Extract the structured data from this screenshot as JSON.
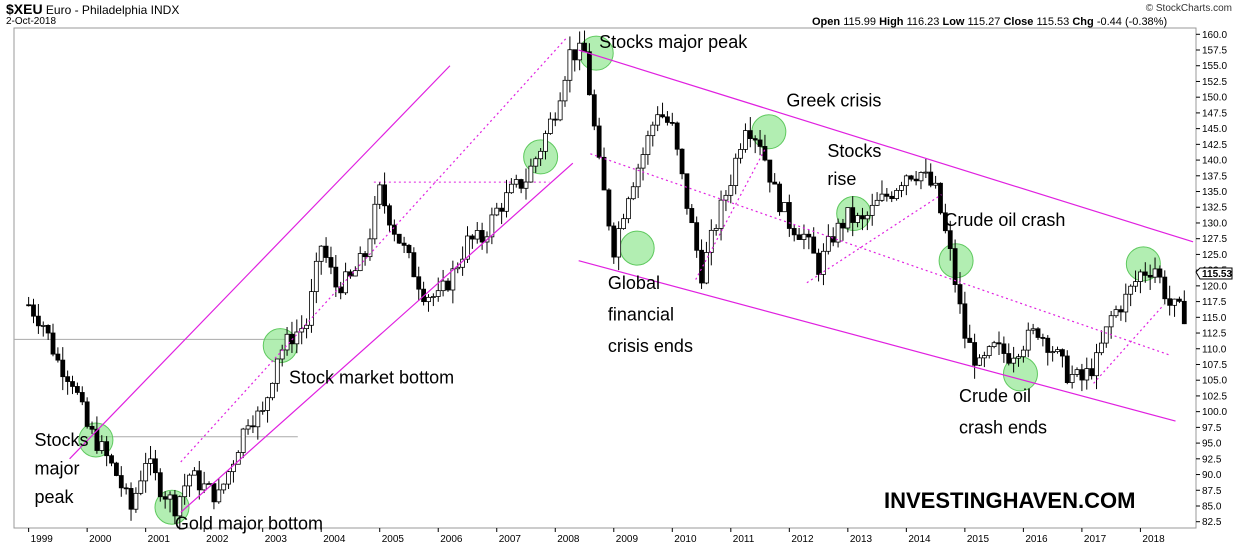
{
  "header": {
    "symbol": "$XEU",
    "name": "Euro - Philadelphia INDX",
    "date": "2-Oct-2018",
    "copyright": "© StockCharts.com",
    "open_label": "Open",
    "open": "115.99",
    "high_label": "High",
    "high": "116.23",
    "low_label": "Low",
    "low": "115.27",
    "close_label": "Close",
    "close": "115.53",
    "chg_label": "Chg",
    "chg": "-0.44 (-0.38%)"
  },
  "watermark": "INVESTINGHAVEN.COM",
  "colors": {
    "up": "#ffffff",
    "down": "#000000",
    "channel": "#e020e0",
    "highlight": "#7ee37e",
    "grid": "#cccccc"
  },
  "chart_data": {
    "type": "candlestick",
    "title": "$XEU Euro - Philadelphia INDX",
    "xlabel": "",
    "ylabel": "",
    "xlim": [
      1998.75,
      2018.95
    ],
    "ylim": [
      81.5,
      161
    ],
    "y_ticks": [
      82.5,
      85.0,
      87.5,
      90.0,
      92.5,
      95.0,
      97.5,
      100.0,
      102.5,
      105.0,
      107.5,
      110.0,
      112.5,
      115.0,
      117.5,
      120.0,
      122.5,
      125.0,
      127.5,
      130.0,
      132.5,
      135.0,
      137.5,
      140.0,
      142.5,
      145.0,
      147.5,
      150.0,
      152.5,
      155.0,
      157.5,
      160.0
    ],
    "x_ticks": [
      "1999",
      "2000",
      "2001",
      "2002",
      "2003",
      "2004",
      "2005",
      "2006",
      "2007",
      "2008",
      "2009",
      "2010",
      "2011",
      "2012",
      "2013",
      "2014",
      "2015",
      "2016",
      "2017",
      "2018"
    ],
    "last_value": "115.53",
    "path_points": [
      [
        1999.0,
        117.0
      ],
      [
        1999.25,
        114.0
      ],
      [
        1999.5,
        108.0
      ],
      [
        1999.75,
        105.0
      ],
      [
        2000.0,
        97.5
      ],
      [
        2000.25,
        94.0
      ],
      [
        2000.5,
        90.0
      ],
      [
        2000.75,
        84.5
      ],
      [
        2001.0,
        92.5
      ],
      [
        2001.25,
        88.0
      ],
      [
        2001.5,
        85.0
      ],
      [
        2001.75,
        90.0
      ],
      [
        2002.0,
        88.0
      ],
      [
        2002.25,
        86.5
      ],
      [
        2002.5,
        92.5
      ],
      [
        2002.75,
        99.0
      ],
      [
        2003.0,
        99.5
      ],
      [
        2003.25,
        109.0
      ],
      [
        2003.5,
        112.0
      ],
      [
        2003.75,
        114.0
      ],
      [
        2004.0,
        126.5
      ],
      [
        2004.25,
        120.0
      ],
      [
        2004.5,
        121.0
      ],
      [
        2004.75,
        125.0
      ],
      [
        2005.0,
        135.0
      ],
      [
        2005.25,
        129.0
      ],
      [
        2005.5,
        124.0
      ],
      [
        2005.75,
        119.0
      ],
      [
        2006.0,
        118.0
      ],
      [
        2006.25,
        122.0
      ],
      [
        2006.5,
        127.0
      ],
      [
        2006.75,
        127.5
      ],
      [
        2007.0,
        132.0
      ],
      [
        2007.25,
        135.0
      ],
      [
        2007.5,
        137.0
      ],
      [
        2007.75,
        142.0
      ],
      [
        2008.0,
        148.0
      ],
      [
        2008.25,
        157.0
      ],
      [
        2008.5,
        157.0
      ],
      [
        2008.75,
        139.0
      ],
      [
        2009.0,
        126.0
      ],
      [
        2009.25,
        135.0
      ],
      [
        2009.5,
        141.0
      ],
      [
        2009.75,
        148.0
      ],
      [
        2010.0,
        145.0
      ],
      [
        2010.25,
        133.0
      ],
      [
        2010.5,
        122.0
      ],
      [
        2010.75,
        130.0
      ],
      [
        2011.0,
        137.0
      ],
      [
        2011.25,
        146.0
      ],
      [
        2011.5,
        143.0
      ],
      [
        2011.75,
        135.0
      ],
      [
        2012.0,
        130.0
      ],
      [
        2012.25,
        128.0
      ],
      [
        2012.5,
        123.0
      ],
      [
        2012.75,
        128.0
      ],
      [
        2013.0,
        131.0
      ],
      [
        2013.25,
        130.0
      ],
      [
        2013.5,
        133.0
      ],
      [
        2013.75,
        135.0
      ],
      [
        2014.0,
        138.0
      ],
      [
        2014.25,
        138.0
      ],
      [
        2014.5,
        135.0
      ],
      [
        2014.75,
        125.0
      ],
      [
        2015.0,
        112.0
      ],
      [
        2015.25,
        107.0
      ],
      [
        2015.5,
        110.0
      ],
      [
        2015.75,
        109.0
      ],
      [
        2016.0,
        111.0
      ],
      [
        2016.25,
        113.0
      ],
      [
        2016.5,
        110.0
      ],
      [
        2016.75,
        106.0
      ],
      [
        2017.0,
        105.0
      ],
      [
        2017.25,
        108.0
      ],
      [
        2017.5,
        115.0
      ],
      [
        2017.75,
        118.0
      ],
      [
        2018.0,
        122.0
      ],
      [
        2018.25,
        123.0
      ],
      [
        2018.5,
        117.0
      ],
      [
        2018.75,
        115.53
      ]
    ],
    "channel_lines": [
      {
        "x1": 1999.7,
        "y1": 92.5,
        "x2": 2006.2,
        "y2": 155.0,
        "style": "solid"
      },
      {
        "x1": 2001.6,
        "y1": 84.0,
        "x2": 2008.3,
        "y2": 139.5,
        "style": "solid"
      },
      {
        "x1": 2001.6,
        "y1": 92.0,
        "x2": 2008.2,
        "y2": 159.5,
        "style": "dotted"
      },
      {
        "x1": 2008.4,
        "y1": 157.5,
        "x2": 2018.9,
        "y2": 127.0,
        "style": "solid"
      },
      {
        "x1": 2008.4,
        "y1": 124.0,
        "x2": 2018.6,
        "y2": 98.5,
        "style": "solid"
      },
      {
        "x1": 2008.6,
        "y1": 141.0,
        "x2": 2018.5,
        "y2": 109.0,
        "style": "dotted"
      },
      {
        "x1": 2010.4,
        "y1": 121.0,
        "x2": 2011.6,
        "y2": 142.0,
        "style": "dotted"
      },
      {
        "x1": 2012.3,
        "y1": 120.5,
        "x2": 2014.6,
        "y2": 134.5,
        "style": "dotted"
      },
      {
        "x1": 2017.2,
        "y1": 104.5,
        "x2": 2018.4,
        "y2": 117.0,
        "style": "dotted"
      }
    ],
    "reference_lines": [
      {
        "x1": 1998.75,
        "x2": 2003.5,
        "y": 111.5,
        "style": "solid_gray"
      },
      {
        "x1": 2000.0,
        "x2": 2003.6,
        "y": 96.0,
        "style": "solid_gray"
      },
      {
        "x1": 2004.9,
        "x2": 2007.9,
        "y": 136.5,
        "style": "dotted_magenta"
      }
    ],
    "highlights": [
      {
        "x": 2000.15,
        "y": 95.5
      },
      {
        "x": 2001.45,
        "y": 84.8
      },
      {
        "x": 2003.3,
        "y": 110.5
      },
      {
        "x": 2007.75,
        "y": 140.5
      },
      {
        "x": 2008.7,
        "y": 157.0
      },
      {
        "x": 2009.4,
        "y": 126.0
      },
      {
        "x": 2011.65,
        "y": 144.5
      },
      {
        "x": 2013.1,
        "y": 131.5
      },
      {
        "x": 2014.85,
        "y": 124.0
      },
      {
        "x": 2015.95,
        "y": 106.0
      },
      {
        "x": 2018.05,
        "y": 123.5
      }
    ],
    "annotations": [
      {
        "text": "Stocks major peak",
        "x": 2008.75,
        "y": 157.8
      },
      {
        "text": "Greek crisis",
        "x": 2011.95,
        "y": 148.5
      },
      {
        "text": "Stocks",
        "x": 2012.65,
        "y": 140.5
      },
      {
        "text": "rise",
        "x": 2012.65,
        "y": 136.0
      },
      {
        "text": "Crude oil crash",
        "x": 2014.65,
        "y": 129.5
      },
      {
        "text": "Global",
        "x": 2008.9,
        "y": 119.5
      },
      {
        "text": "financial",
        "x": 2008.9,
        "y": 114.5
      },
      {
        "text": "crisis ends",
        "x": 2008.9,
        "y": 109.5
      },
      {
        "text": "Stock market bottom",
        "x": 2003.45,
        "y": 104.5
      },
      {
        "text": "Crude oil",
        "x": 2014.9,
        "y": 101.5
      },
      {
        "text": "crash ends",
        "x": 2014.9,
        "y": 96.5
      },
      {
        "text": "Stocks",
        "x": 1999.1,
        "y": 94.5
      },
      {
        "text": "major",
        "x": 1999.1,
        "y": 90.0
      },
      {
        "text": "peak",
        "x": 1999.1,
        "y": 85.5
      },
      {
        "text": "Gold major bottom",
        "x": 2001.5,
        "y": 81.3
      }
    ]
  }
}
